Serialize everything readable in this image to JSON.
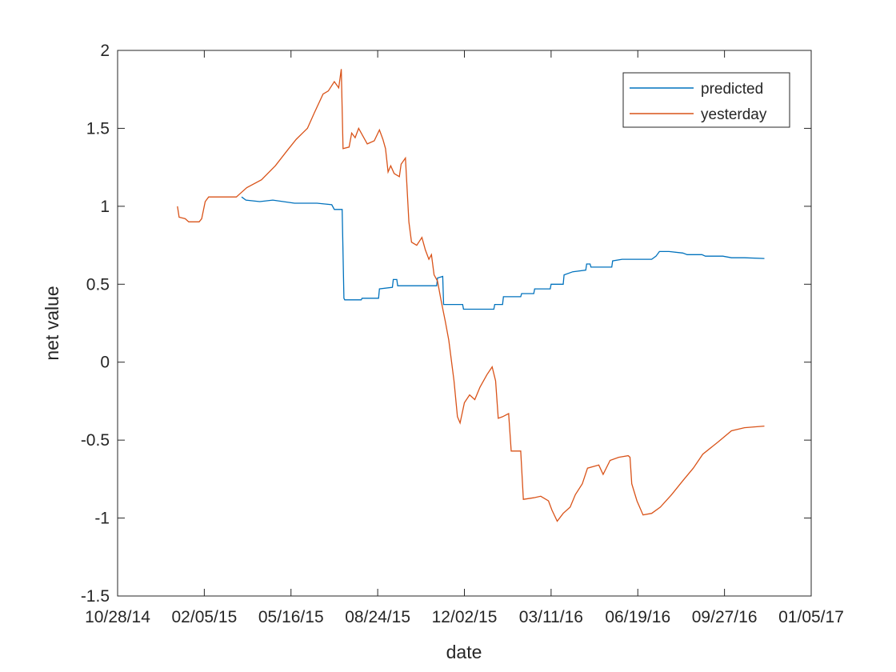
{
  "chart_data": {
    "type": "line",
    "title": "",
    "xlabel": "date",
    "ylabel": "net value",
    "xlim": [
      "10/28/14",
      "01/05/17"
    ],
    "ylim": [
      -1.5,
      2
    ],
    "x_ticks": [
      "10/28/14",
      "02/05/15",
      "05/16/15",
      "08/24/15",
      "12/02/15",
      "03/11/16",
      "06/19/16",
      "09/27/16",
      "01/05/17"
    ],
    "y_ticks": [
      -1.5,
      -1,
      -0.5,
      0,
      0.5,
      1,
      1.5,
      2
    ],
    "y_tick_labels": [
      "-1.5",
      "-1",
      "-0.5",
      "0",
      "0.5",
      "1",
      "1.5",
      "2"
    ],
    "grid": false,
    "legend_position": "top-right",
    "series": [
      {
        "name": "predicted",
        "color": "#0072BD",
        "points": [
          [
            "2015-03-20",
            1.06
          ],
          [
            "2015-03-25",
            1.04
          ],
          [
            "2015-04-10",
            1.03
          ],
          [
            "2015-04-25",
            1.04
          ],
          [
            "2015-05-20",
            1.02
          ],
          [
            "2015-06-15",
            1.02
          ],
          [
            "2015-07-02",
            1.01
          ],
          [
            "2015-07-05",
            0.98
          ],
          [
            "2015-07-14",
            0.98
          ],
          [
            "2015-07-16",
            0.41
          ],
          [
            "2015-07-17",
            0.4
          ],
          [
            "2015-08-05",
            0.4
          ],
          [
            "2015-08-06",
            0.41
          ],
          [
            "2015-08-25",
            0.41
          ],
          [
            "2015-08-26",
            0.47
          ],
          [
            "2015-09-10",
            0.48
          ],
          [
            "2015-09-11",
            0.53
          ],
          [
            "2015-09-15",
            0.53
          ],
          [
            "2015-09-16",
            0.49
          ],
          [
            "2015-10-31",
            0.49
          ],
          [
            "2015-11-01",
            0.54
          ],
          [
            "2015-11-07",
            0.55
          ],
          [
            "2015-11-08",
            0.37
          ],
          [
            "2015-11-30",
            0.37
          ],
          [
            "2015-12-01",
            0.34
          ],
          [
            "2016-01-05",
            0.34
          ],
          [
            "2016-01-06",
            0.37
          ],
          [
            "2016-01-15",
            0.37
          ],
          [
            "2016-01-16",
            0.42
          ],
          [
            "2016-02-05",
            0.42
          ],
          [
            "2016-02-06",
            0.44
          ],
          [
            "2016-02-20",
            0.44
          ],
          [
            "2016-02-21",
            0.47
          ],
          [
            "2016-03-10",
            0.47
          ],
          [
            "2016-03-11",
            0.5
          ],
          [
            "2016-03-25",
            0.5
          ],
          [
            "2016-03-26",
            0.56
          ],
          [
            "2016-04-05",
            0.58
          ],
          [
            "2016-04-20",
            0.59
          ],
          [
            "2016-04-21",
            0.63
          ],
          [
            "2016-04-25",
            0.63
          ],
          [
            "2016-04-26",
            0.61
          ],
          [
            "2016-05-20",
            0.61
          ],
          [
            "2016-05-21",
            0.65
          ],
          [
            "2016-06-01",
            0.66
          ],
          [
            "2016-07-05",
            0.66
          ],
          [
            "2016-07-10",
            0.68
          ],
          [
            "2016-07-14",
            0.71
          ],
          [
            "2016-07-25",
            0.71
          ],
          [
            "2016-08-10",
            0.7
          ],
          [
            "2016-08-15",
            0.69
          ],
          [
            "2016-09-01",
            0.69
          ],
          [
            "2016-09-05",
            0.68
          ],
          [
            "2016-09-25",
            0.68
          ],
          [
            "2016-10-05",
            0.67
          ],
          [
            "2016-10-20",
            0.67
          ],
          [
            "2016-11-12",
            0.665
          ]
        ]
      },
      {
        "name": "yesterday",
        "color": "#D95319",
        "points": [
          [
            "2015-01-05",
            1.0
          ],
          [
            "2015-01-07",
            0.93
          ],
          [
            "2015-01-14",
            0.92
          ],
          [
            "2015-01-18",
            0.9
          ],
          [
            "2015-01-30",
            0.9
          ],
          [
            "2015-02-02",
            0.92
          ],
          [
            "2015-02-06",
            1.03
          ],
          [
            "2015-02-10",
            1.06
          ],
          [
            "2015-03-14",
            1.06
          ],
          [
            "2015-03-18",
            1.08
          ],
          [
            "2015-03-26",
            1.12
          ],
          [
            "2015-04-12",
            1.17
          ],
          [
            "2015-04-28",
            1.26
          ],
          [
            "2015-05-12",
            1.36
          ],
          [
            "2015-05-22",
            1.43
          ],
          [
            "2015-06-04",
            1.5
          ],
          [
            "2015-06-12",
            1.6
          ],
          [
            "2015-06-22",
            1.72
          ],
          [
            "2015-06-28",
            1.74
          ],
          [
            "2015-07-05",
            1.8
          ],
          [
            "2015-07-10",
            1.76
          ],
          [
            "2015-07-13",
            1.88
          ],
          [
            "2015-07-15",
            1.37
          ],
          [
            "2015-07-22",
            1.38
          ],
          [
            "2015-07-25",
            1.47
          ],
          [
            "2015-07-29",
            1.44
          ],
          [
            "2015-08-02",
            1.5
          ],
          [
            "2015-08-06",
            1.46
          ],
          [
            "2015-08-12",
            1.4
          ],
          [
            "2015-08-20",
            1.42
          ],
          [
            "2015-08-26",
            1.49
          ],
          [
            "2015-08-30",
            1.43
          ],
          [
            "2015-09-02",
            1.37
          ],
          [
            "2015-09-05",
            1.22
          ],
          [
            "2015-09-08",
            1.26
          ],
          [
            "2015-09-12",
            1.21
          ],
          [
            "2015-09-18",
            1.19
          ],
          [
            "2015-09-20",
            1.27
          ],
          [
            "2015-09-25",
            1.31
          ],
          [
            "2015-09-29",
            0.9
          ],
          [
            "2015-10-02",
            0.77
          ],
          [
            "2015-10-08",
            0.75
          ],
          [
            "2015-10-14",
            0.8
          ],
          [
            "2015-10-18",
            0.72
          ],
          [
            "2015-10-22",
            0.66
          ],
          [
            "2015-10-25",
            0.69
          ],
          [
            "2015-10-28",
            0.56
          ],
          [
            "2015-11-01",
            0.52
          ],
          [
            "2015-11-05",
            0.4
          ],
          [
            "2015-11-10",
            0.26
          ],
          [
            "2015-11-14",
            0.14
          ],
          [
            "2015-11-20",
            -0.12
          ],
          [
            "2015-11-24",
            -0.35
          ],
          [
            "2015-11-27",
            -0.39
          ],
          [
            "2015-12-02",
            -0.26
          ],
          [
            "2015-12-08",
            -0.21
          ],
          [
            "2015-12-14",
            -0.24
          ],
          [
            "2015-12-20",
            -0.16
          ],
          [
            "2015-12-28",
            -0.08
          ],
          [
            "2016-01-03",
            -0.03
          ],
          [
            "2016-01-07",
            -0.12
          ],
          [
            "2016-01-10",
            -0.36
          ],
          [
            "2016-01-15",
            -0.35
          ],
          [
            "2016-01-22",
            -0.33
          ],
          [
            "2016-01-25",
            -0.57
          ],
          [
            "2016-02-05",
            -0.57
          ],
          [
            "2016-02-08",
            -0.88
          ],
          [
            "2016-02-20",
            -0.87
          ],
          [
            "2016-02-28",
            -0.86
          ],
          [
            "2016-03-08",
            -0.89
          ],
          [
            "2016-03-12",
            -0.95
          ],
          [
            "2016-03-18",
            -1.02
          ],
          [
            "2016-03-25",
            -0.97
          ],
          [
            "2016-04-02",
            -0.93
          ],
          [
            "2016-04-08",
            -0.85
          ],
          [
            "2016-04-16",
            -0.78
          ],
          [
            "2016-04-22",
            -0.68
          ],
          [
            "2016-05-05",
            -0.66
          ],
          [
            "2016-05-10",
            -0.72
          ],
          [
            "2016-05-18",
            -0.63
          ],
          [
            "2016-05-28",
            -0.61
          ],
          [
            "2016-06-08",
            -0.6
          ],
          [
            "2016-06-10",
            -0.61
          ],
          [
            "2016-06-12",
            -0.78
          ],
          [
            "2016-06-18",
            -0.89
          ],
          [
            "2016-06-25",
            -0.98
          ],
          [
            "2016-07-05",
            -0.97
          ],
          [
            "2016-07-15",
            -0.93
          ],
          [
            "2016-07-28",
            -0.85
          ],
          [
            "2016-08-10",
            -0.76
          ],
          [
            "2016-08-22",
            -0.68
          ],
          [
            "2016-09-02",
            -0.59
          ],
          [
            "2016-09-20",
            -0.51
          ],
          [
            "2016-10-05",
            -0.44
          ],
          [
            "2016-10-20",
            -0.42
          ],
          [
            "2016-11-12",
            -0.41
          ]
        ]
      }
    ]
  }
}
